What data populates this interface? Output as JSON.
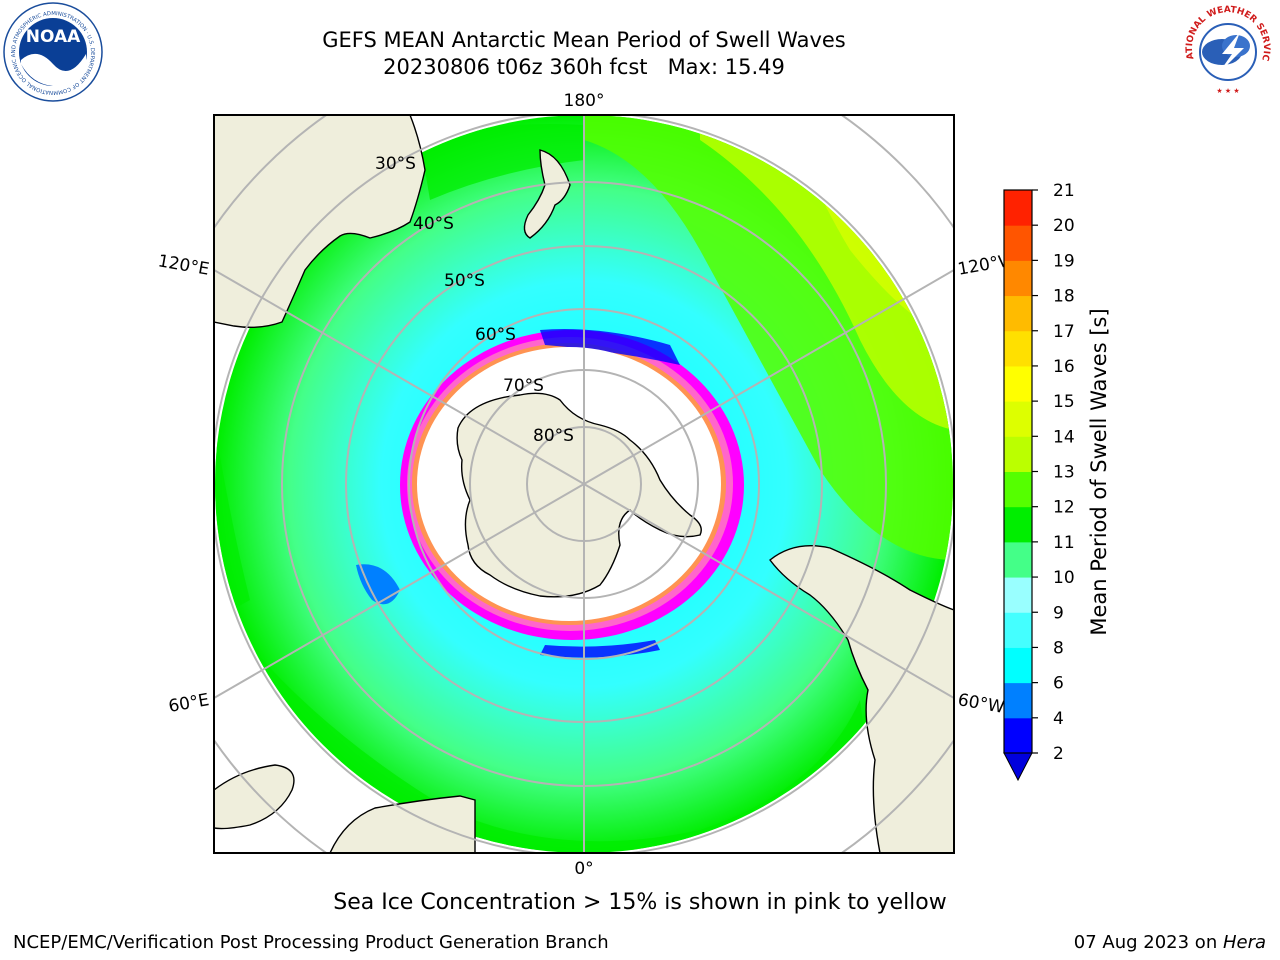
{
  "title": {
    "line1": "GEFS MEAN Antarctic Mean Period of Swell Waves",
    "line2": "20230806 t06z 360h fcst   Max: 15.49"
  },
  "logos": {
    "left": {
      "text": "NOAA",
      "ring_text": "NATIONAL OCEANIC AND ATMOSPHERIC ADMINISTRATION · U.S. DEPARTMENT OF COMMERCE",
      "colors": {
        "ring": "#1a4d9c",
        "sky": "#0a3f96",
        "gull": "#ffffff"
      }
    },
    "right": {
      "ring_text": "NATIONAL WEATHER SERVICE",
      "colors": {
        "ring_text": "#d01c1c",
        "cloud": "#2a5fb7",
        "bolt": "#ffffff"
      }
    }
  },
  "map": {
    "projection": "South Polar Stereographic",
    "longitude_labels": {
      "top": "180°",
      "bottom": "0°",
      "upper_left": "120°E",
      "lower_left": "60°E",
      "upper_right": "120°W",
      "lower_right": "60°W"
    },
    "latitude_labels": [
      "30°S",
      "40°S",
      "50°S",
      "60°S",
      "70°S",
      "80°S"
    ],
    "colors": {
      "land": "#efeedc",
      "graticule": "#b4b4b4",
      "sea_ice_no_data": "#ffffff",
      "sea_ice_edge_palette": [
        "#ff00ff",
        "#ff66cc",
        "#ffb000",
        "#ffff00",
        "#0000ff"
      ]
    }
  },
  "colorbar": {
    "label": "Mean Period of Swell Waves [s]",
    "ticks": [
      "2",
      "4",
      "6",
      "8",
      "9",
      "10",
      "11",
      "12",
      "13",
      "14",
      "15",
      "16",
      "17",
      "18",
      "19",
      "20",
      "21"
    ],
    "colors": [
      "#0000ff",
      "#0080ff",
      "#00ffff",
      "#44ffff",
      "#99ffff",
      "#44ff88",
      "#00ee00",
      "#55ff00",
      "#bbff00",
      "#ddff00",
      "#ffff00",
      "#ffe000",
      "#ffbb00",
      "#ff8800",
      "#ff5500",
      "#ff2200"
    ],
    "extend_min_color": "#0000dd"
  },
  "notes": {
    "sea_ice": "Sea Ice Concentration > 15% is shown in pink to yellow"
  },
  "footer": {
    "left": "NCEP/EMC/Verification Post Processing Product Generation Branch",
    "date": "07 Aug 2023 on ",
    "host": "Hera"
  }
}
